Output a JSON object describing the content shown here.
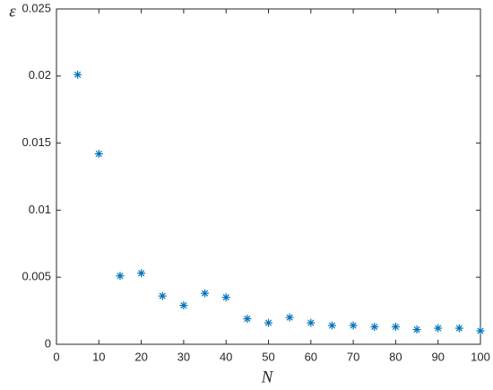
{
  "chart_data": {
    "type": "scatter",
    "xlabel": "N",
    "ylabel": "ε",
    "x": [
      5,
      10,
      15,
      20,
      25,
      30,
      35,
      40,
      45,
      50,
      55,
      60,
      65,
      70,
      75,
      80,
      85,
      90,
      95,
      100
    ],
    "series": [
      {
        "color": "#0072bd",
        "marker": "asterisk",
        "values": [
          0.0201,
          0.0142,
          0.0051,
          0.0053,
          0.0036,
          0.0029,
          0.0038,
          0.0035,
          0.0019,
          0.0016,
          0.002,
          0.0016,
          0.0014,
          0.0014,
          0.0013,
          0.0013,
          0.0011,
          0.0012,
          0.0012,
          0.001
        ]
      }
    ],
    "xlim": [
      0,
      100
    ],
    "xticks": [
      0,
      10,
      20,
      30,
      40,
      50,
      60,
      70,
      80,
      90,
      100
    ],
    "ylim": [
      0,
      0.025
    ],
    "yticks": [
      0,
      0.005,
      0.01,
      0.015,
      0.02,
      0.025
    ],
    "grid": false
  }
}
